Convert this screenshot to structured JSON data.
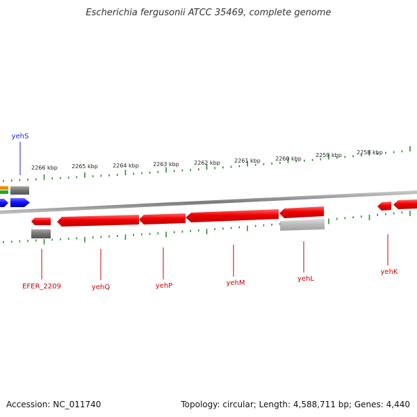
{
  "title": "Escherichia fergusonii ATCC 35469, complete genome",
  "footer": {
    "accession": "Accession: NC_011740",
    "summary": "Topology: circular; Length: 4,588,711 bp; Genes: 4,440"
  },
  "scale": {
    "ticks": [
      "2266 kbp",
      "2265 kbp",
      "2264 kbp",
      "2263 kbp",
      "2262 kbp",
      "2261 kbp",
      "2260 kbp",
      "2259 kbp",
      "2258 kbp"
    ]
  },
  "genes_forward": [
    {
      "label": "yehS",
      "color": "#1a1aff"
    }
  ],
  "genes_reverse": [
    {
      "label": "EFER_2209",
      "color": "#cc0000"
    },
    {
      "label": "yehQ",
      "color": "#cc0000"
    },
    {
      "label": "yehP",
      "color": "#cc0000"
    },
    {
      "label": "yehM",
      "color": "#cc0000"
    },
    {
      "label": "yehL",
      "color": "#cc0000"
    },
    {
      "label": "yehK",
      "color": "#cc0000"
    }
  ],
  "colors": {
    "forward_cds": "#1414ff",
    "reverse_cds": "#ee0000",
    "backbone": "#8a8a8a",
    "ticks": "#2e8b2e",
    "features_grey": "#777777"
  }
}
